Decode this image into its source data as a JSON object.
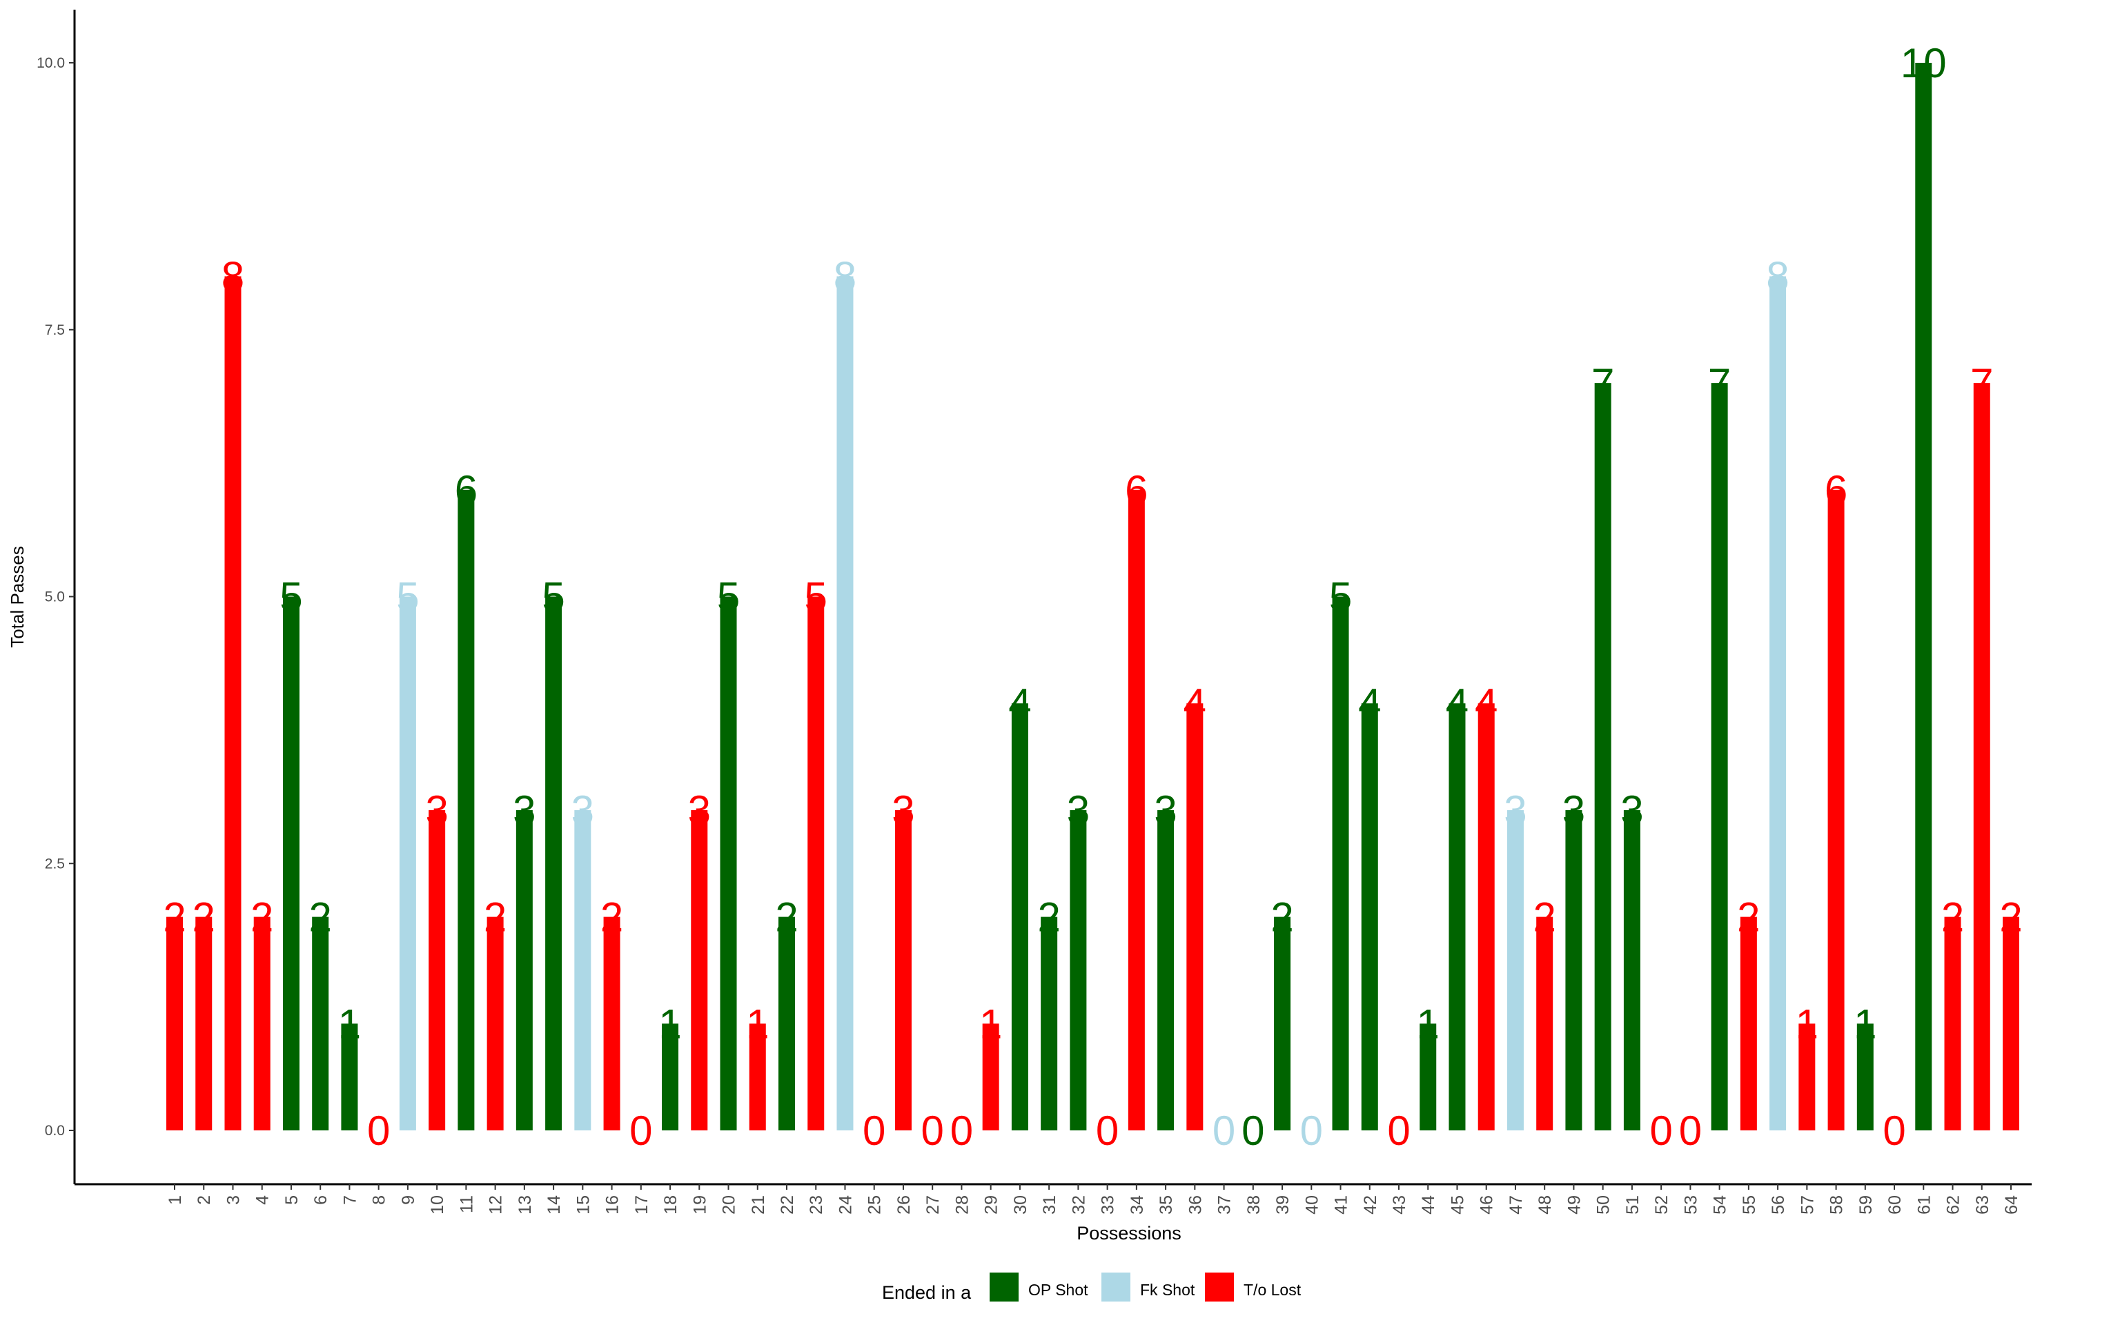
{
  "chart_data": {
    "type": "bar",
    "xlabel": "Possessions",
    "ylabel": "Total Passes",
    "ylim": [
      0,
      10
    ],
    "yticks": [
      "0.0",
      "2.5",
      "5.0",
      "7.5",
      "10.0"
    ],
    "grid": false,
    "legend": {
      "title": "Ended in a",
      "position": "bottom",
      "entries": [
        {
          "key": "op",
          "label": "OP Shot",
          "color": "#006400"
        },
        {
          "key": "fk",
          "label": "Fk Shot",
          "color": "#ADD8E6"
        },
        {
          "key": "to",
          "label": "T/o Lost",
          "color": "#FF0000"
        }
      ]
    },
    "categories": [
      "1",
      "2",
      "3",
      "4",
      "5",
      "6",
      "7",
      "8",
      "9",
      "10",
      "11",
      "12",
      "13",
      "14",
      "15",
      "16",
      "17",
      "18",
      "19",
      "20",
      "21",
      "22",
      "23",
      "24",
      "25",
      "26",
      "27",
      "28",
      "29",
      "30",
      "31",
      "32",
      "33",
      "34",
      "35",
      "36",
      "37",
      "38",
      "39",
      "40",
      "41",
      "42",
      "43",
      "44",
      "45",
      "46",
      "47",
      "48",
      "49",
      "50",
      "51",
      "52",
      "53",
      "54",
      "55",
      "56",
      "57",
      "58",
      "59",
      "60",
      "61",
      "62",
      "63",
      "64"
    ],
    "values": [
      2,
      2,
      8,
      2,
      5,
      2,
      1,
      0,
      5,
      3,
      6,
      2,
      3,
      5,
      3,
      2,
      0,
      1,
      3,
      5,
      1,
      2,
      5,
      8,
      0,
      3,
      0,
      0,
      1,
      4,
      2,
      3,
      0,
      6,
      3,
      4,
      0,
      0,
      2,
      0,
      5,
      4,
      0,
      1,
      4,
      4,
      3,
      2,
      3,
      7,
      3,
      0,
      0,
      7,
      2,
      8,
      1,
      6,
      1,
      0,
      10,
      2,
      7,
      2
    ],
    "outcomes": [
      "to",
      "to",
      "to",
      "to",
      "op",
      "op",
      "op",
      "to",
      "fk",
      "to",
      "op",
      "to",
      "op",
      "op",
      "fk",
      "to",
      "to",
      "op",
      "to",
      "op",
      "to",
      "op",
      "to",
      "fk",
      "to",
      "to",
      "to",
      "to",
      "to",
      "op",
      "op",
      "op",
      "to",
      "to",
      "op",
      "to",
      "fk",
      "op",
      "op",
      "fk",
      "op",
      "op",
      "to",
      "op",
      "op",
      "to",
      "fk",
      "to",
      "op",
      "op",
      "op",
      "to",
      "to",
      "op",
      "to",
      "fk",
      "to",
      "to",
      "op",
      "to",
      "op",
      "to",
      "to",
      "to"
    ],
    "data_labels": [
      "2",
      "2",
      "8",
      "2",
      "5",
      "2",
      "1",
      "0",
      "5",
      "3",
      "6",
      "2",
      "3",
      "5",
      "3",
      "2",
      "0",
      "1",
      "3",
      "5",
      "1",
      "2",
      "5",
      "8",
      "0",
      "3",
      "0",
      "0",
      "1",
      "4",
      "2",
      "3",
      "0",
      "6",
      "3",
      "4",
      "0",
      "0",
      "2",
      "0",
      "5",
      "4",
      "0",
      "1",
      "4",
      "4",
      "3",
      "2",
      "3",
      "7",
      "3",
      "0",
      "0",
      "7",
      "2",
      "8",
      "1",
      "6",
      "1",
      "0",
      "10",
      "2",
      "7",
      "2"
    ]
  }
}
